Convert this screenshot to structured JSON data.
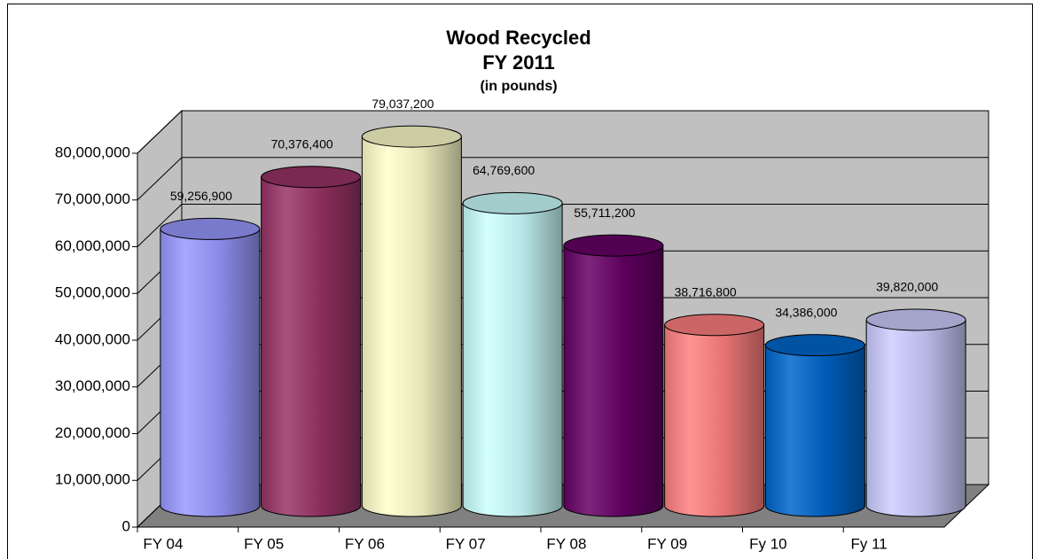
{
  "chart_data": {
    "type": "bar",
    "title": "Wood Recycled",
    "subtitle": "FY 2011",
    "units": "(in pounds)",
    "categories": [
      "FY 04",
      "FY 05",
      "FY 06",
      "FY 07",
      "FY 08",
      "FY 09",
      "Fy 10",
      "Fy 11"
    ],
    "values": [
      59256900,
      70376400,
      79037200,
      64769600,
      55711200,
      38716800,
      34386000,
      39820000
    ],
    "value_labels": [
      "59,256,900",
      "70,376,400",
      "79,037,200",
      "64,769,600",
      "55,711,200",
      "38,716,800",
      "34,386,000",
      "39,820,000"
    ],
    "colors": [
      "#9999ff",
      "#993366",
      "#ffffcc",
      "#ccffff",
      "#660066",
      "#ff8080",
      "#0066cc",
      "#ccccff"
    ],
    "ylim": [
      0,
      80000000
    ],
    "yticks": [
      0,
      {
        "value": 10000000,
        "label": "10,000,000"
      },
      {
        "value": 20000000,
        "label": "20,000,000"
      },
      {
        "value": 30000000,
        "label": "30,000,000"
      },
      {
        "value": 40000000,
        "label": "40,000,000"
      },
      {
        "value": 50000000,
        "label": "50,000,000"
      },
      {
        "value": 60000000,
        "label": "60,000,000"
      },
      {
        "value": 70000000,
        "label": "70,000,000"
      },
      {
        "value": 80000000,
        "label": "80,000,000"
      }
    ],
    "grid": true
  }
}
